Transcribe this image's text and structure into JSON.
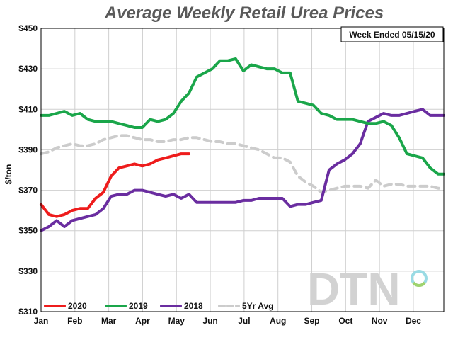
{
  "chart_data": {
    "type": "line",
    "title": "Average Weekly Retail Urea Prices",
    "ylabel": "$/ton",
    "xlabel": "",
    "ylim": [
      310,
      450
    ],
    "yticks": [
      310,
      330,
      350,
      370,
      390,
      410,
      430,
      450
    ],
    "ytick_labels": [
      "$310",
      "$330",
      "$350",
      "$370",
      "$390",
      "$410",
      "$430",
      "$450"
    ],
    "xlim": [
      1,
      12.9
    ],
    "xticks": [
      1,
      2,
      3,
      4,
      5,
      6,
      7,
      8,
      9,
      10,
      11,
      12
    ],
    "xtick_labels": [
      "Jan",
      "Feb",
      "Mar",
      "Apr",
      "May",
      "Jun",
      "Jul",
      "Aug",
      "Sep",
      "Oct",
      "Nov",
      "Dec"
    ],
    "grid": true,
    "legend_position": "bottom-left",
    "annotation": "Week Ended 05/15/20",
    "logo": "DTN",
    "colors": {
      "2020": "#ee1c1c",
      "2019": "#1aa64a",
      "2018": "#6a2da0",
      "5Yr Avg": "#cccccc",
      "grid": "#cfcfcf"
    },
    "series": [
      {
        "name": "2020",
        "color": "#ee1c1c",
        "dashed": false,
        "x": [
          1.0,
          1.23,
          1.46,
          1.69,
          1.92,
          2.15,
          2.38,
          2.61,
          2.84,
          3.07,
          3.3,
          3.53,
          3.76,
          3.99,
          4.22,
          4.45,
          4.68,
          4.91,
          5.14,
          5.37
        ],
        "y": [
          363,
          358,
          357,
          358,
          360,
          361,
          361,
          366,
          369,
          377,
          381,
          382,
          383,
          382,
          383,
          385,
          386,
          387,
          388,
          388
        ]
      },
      {
        "name": "2019",
        "color": "#1aa64a",
        "dashed": false,
        "x": [
          1.0,
          1.23,
          1.46,
          1.69,
          1.92,
          2.15,
          2.38,
          2.61,
          2.84,
          3.07,
          3.3,
          3.53,
          3.76,
          3.99,
          4.22,
          4.45,
          4.68,
          4.91,
          5.14,
          5.37,
          5.6,
          5.83,
          6.06,
          6.29,
          6.52,
          6.75,
          6.98,
          7.21,
          7.44,
          7.67,
          7.9,
          8.13,
          8.36,
          8.59,
          8.82,
          9.05,
          9.28,
          9.51,
          9.74,
          9.97,
          10.2,
          10.43,
          10.66,
          10.89,
          11.12,
          11.35,
          11.58,
          11.81,
          12.04,
          12.27,
          12.5,
          12.73,
          12.9
        ],
        "y": [
          407,
          407,
          408,
          409,
          407,
          408,
          405,
          404,
          404,
          404,
          403,
          402,
          401,
          401,
          405,
          404,
          405,
          408,
          414,
          418,
          426,
          428,
          430,
          434,
          434,
          435,
          429,
          432,
          431,
          430,
          430,
          428,
          428,
          414,
          413,
          412,
          408,
          407,
          405,
          405,
          405,
          404,
          403,
          403,
          404,
          402,
          396,
          388,
          387,
          386,
          381,
          378,
          378
        ]
      },
      {
        "name": "2018",
        "color": "#6a2da0",
        "dashed": false,
        "x": [
          1.0,
          1.23,
          1.46,
          1.69,
          1.92,
          2.15,
          2.38,
          2.61,
          2.84,
          3.07,
          3.3,
          3.53,
          3.76,
          3.99,
          4.22,
          4.45,
          4.68,
          4.91,
          5.14,
          5.37,
          5.6,
          5.83,
          6.06,
          6.29,
          6.52,
          6.75,
          6.98,
          7.21,
          7.44,
          7.67,
          7.9,
          8.13,
          8.36,
          8.59,
          8.82,
          9.05,
          9.28,
          9.51,
          9.74,
          9.97,
          10.2,
          10.43,
          10.66,
          10.89,
          11.12,
          11.35,
          11.58,
          11.81,
          12.04,
          12.27,
          12.5,
          12.73,
          12.9
        ],
        "y": [
          350,
          352,
          355,
          352,
          355,
          356,
          357,
          358,
          361,
          367,
          368,
          368,
          370,
          370,
          369,
          368,
          367,
          368,
          366,
          368,
          364,
          364,
          364,
          364,
          364,
          364,
          365,
          365,
          366,
          366,
          366,
          366,
          362,
          363,
          363,
          364,
          365,
          380,
          383,
          385,
          388,
          393,
          404,
          406,
          408,
          407,
          407,
          408,
          409,
          410,
          407,
          407,
          407
        ]
      },
      {
        "name": "5Yr Avg",
        "color": "#cccccc",
        "dashed": true,
        "x": [
          1.0,
          1.23,
          1.46,
          1.69,
          1.92,
          2.15,
          2.38,
          2.61,
          2.84,
          3.07,
          3.3,
          3.53,
          3.76,
          3.99,
          4.22,
          4.45,
          4.68,
          4.91,
          5.14,
          5.37,
          5.6,
          5.83,
          6.06,
          6.29,
          6.52,
          6.75,
          6.98,
          7.21,
          7.44,
          7.67,
          7.9,
          8.13,
          8.36,
          8.59,
          8.82,
          9.05,
          9.28,
          9.51,
          9.74,
          9.97,
          10.2,
          10.43,
          10.66,
          10.89,
          11.12,
          11.35,
          11.58,
          11.81,
          12.04,
          12.27,
          12.5,
          12.73,
          12.9
        ],
        "y": [
          388,
          389,
          391,
          392,
          393,
          392,
          392,
          393,
          395,
          396,
          397,
          397,
          396,
          395,
          395,
          394,
          394,
          395,
          395,
          396,
          396,
          395,
          394,
          394,
          393,
          393,
          392,
          391,
          390,
          388,
          386,
          386,
          384,
          377,
          374,
          372,
          369,
          370,
          371,
          372,
          372,
          372,
          371,
          375,
          372,
          373,
          373,
          372,
          372,
          372,
          372,
          371,
          371
        ]
      }
    ]
  }
}
